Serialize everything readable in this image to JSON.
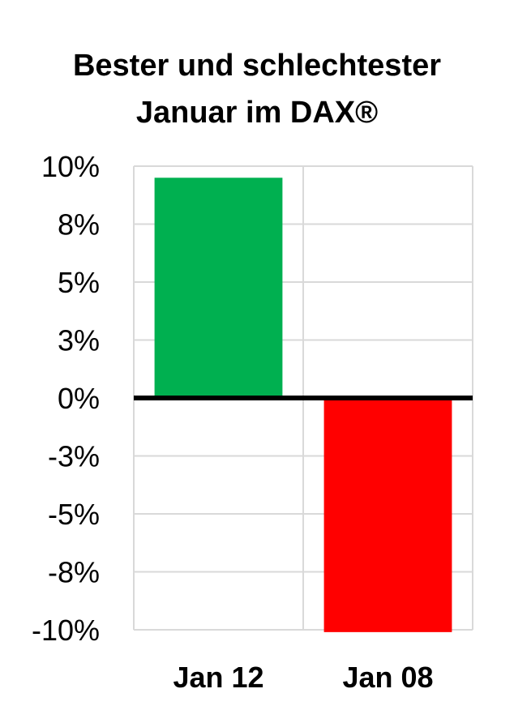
{
  "chart_data": {
    "type": "bar",
    "title_lines": [
      "Bester und schlechtester",
      "Januar im DAX®"
    ],
    "categories": [
      "Jan 12",
      "Jan 08"
    ],
    "values": [
      9.5,
      -10.1
    ],
    "colors": [
      "#00b050",
      "#ff0000"
    ],
    "ylim": [
      -10,
      10
    ],
    "y_ticks": [
      10,
      7.5,
      5,
      2.5,
      0,
      -2.5,
      -5,
      -7.5,
      -10
    ],
    "y_tick_labels": [
      "10%",
      "8%",
      "5%",
      "3%",
      "0%",
      "-3%",
      "-5%",
      "-8%",
      "-10%"
    ],
    "grid": true,
    "zero_line_color": "#000000",
    "grid_color": "#d9d9d9"
  }
}
